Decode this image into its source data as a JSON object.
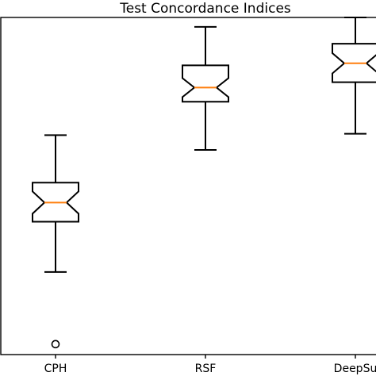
{
  "chart_data": {
    "type": "boxplot",
    "title": "Test Concordance Indices",
    "xlabel": "",
    "ylabel": "",
    "categories": [
      "CPH",
      "RSF",
      "DeepSurv"
    ],
    "visible_tick_labels": [
      "CPH",
      "RSF",
      "DeepSu"
    ],
    "notched": true,
    "ylim": [
      0.0,
      1.0
    ],
    "colors": {
      "box": "#000000",
      "median": "#ff7f0e",
      "flier": "#000000",
      "background": "#ffffff"
    },
    "boxes": [
      {
        "category": "CPH",
        "whisker_low": 0.245,
        "q1": 0.394,
        "notch_low": 0.418,
        "median": 0.451,
        "notch_high": 0.484,
        "q3": 0.51,
        "whisker_high": 0.651,
        "fliers": [
          0.031
        ]
      },
      {
        "category": "RSF",
        "whisker_low": 0.607,
        "q1": 0.75,
        "notch_low": 0.764,
        "median": 0.792,
        "notch_high": 0.82,
        "q3": 0.858,
        "whisker_high": 0.972,
        "fliers": []
      },
      {
        "category": "DeepSurv",
        "whisker_low": 0.655,
        "q1": 0.808,
        "notch_low": 0.834,
        "median": 0.864,
        "notch_high": 0.894,
        "q3": 0.922,
        "whisker_high": 1.0,
        "fliers": []
      }
    ]
  }
}
